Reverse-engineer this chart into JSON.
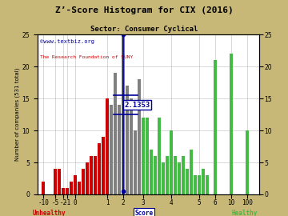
{
  "title": "Z’-Score Histogram for CIX (2016)",
  "subtitle": "Sector: Consumer Cyclical",
  "watermark1": "©www.textbiz.org",
  "watermark2": "The Research Foundation of SUNY",
  "cix_score": 2.1353,
  "cix_label": "2.1353",
  "background_color": "#c8b878",
  "plot_bg_color": "#ffffff",
  "bar_data": [
    {
      "x": 0,
      "height": 2,
      "color": "#cc0000"
    },
    {
      "x": 3,
      "height": 4,
      "color": "#cc0000"
    },
    {
      "x": 4,
      "height": 4,
      "color": "#cc0000"
    },
    {
      "x": 5,
      "height": 1,
      "color": "#cc0000"
    },
    {
      "x": 6,
      "height": 1,
      "color": "#cc0000"
    },
    {
      "x": 7,
      "height": 2,
      "color": "#cc0000"
    },
    {
      "x": 8,
      "height": 3,
      "color": "#cc0000"
    },
    {
      "x": 9,
      "height": 2,
      "color": "#cc0000"
    },
    {
      "x": 10,
      "height": 4,
      "color": "#cc0000"
    },
    {
      "x": 11,
      "height": 5,
      "color": "#cc0000"
    },
    {
      "x": 12,
      "height": 6,
      "color": "#cc0000"
    },
    {
      "x": 13,
      "height": 6,
      "color": "#cc0000"
    },
    {
      "x": 14,
      "height": 8,
      "color": "#cc0000"
    },
    {
      "x": 15,
      "height": 9,
      "color": "#cc0000"
    },
    {
      "x": 16,
      "height": 15,
      "color": "#cc0000"
    },
    {
      "x": 17,
      "height": 14,
      "color": "#808080"
    },
    {
      "x": 18,
      "height": 19,
      "color": "#808080"
    },
    {
      "x": 19,
      "height": 14,
      "color": "#808080"
    },
    {
      "x": 20,
      "height": 25,
      "color": "#808080"
    },
    {
      "x": 21,
      "height": 17,
      "color": "#808080"
    },
    {
      "x": 22,
      "height": 15,
      "color": "#808080"
    },
    {
      "x": 23,
      "height": 10,
      "color": "#808080"
    },
    {
      "x": 24,
      "height": 18,
      "color": "#808080"
    },
    {
      "x": 25,
      "height": 12,
      "color": "#44bb44"
    },
    {
      "x": 26,
      "height": 12,
      "color": "#44bb44"
    },
    {
      "x": 27,
      "height": 7,
      "color": "#44bb44"
    },
    {
      "x": 28,
      "height": 6,
      "color": "#44bb44"
    },
    {
      "x": 29,
      "height": 12,
      "color": "#44bb44"
    },
    {
      "x": 30,
      "height": 5,
      "color": "#44bb44"
    },
    {
      "x": 31,
      "height": 6,
      "color": "#44bb44"
    },
    {
      "x": 32,
      "height": 10,
      "color": "#44bb44"
    },
    {
      "x": 33,
      "height": 6,
      "color": "#44bb44"
    },
    {
      "x": 34,
      "height": 5,
      "color": "#44bb44"
    },
    {
      "x": 35,
      "height": 6,
      "color": "#44bb44"
    },
    {
      "x": 36,
      "height": 4,
      "color": "#44bb44"
    },
    {
      "x": 37,
      "height": 7,
      "color": "#44bb44"
    },
    {
      "x": 38,
      "height": 3,
      "color": "#44bb44"
    },
    {
      "x": 39,
      "height": 3,
      "color": "#44bb44"
    },
    {
      "x": 40,
      "height": 4,
      "color": "#44bb44"
    },
    {
      "x": 41,
      "height": 3,
      "color": "#44bb44"
    },
    {
      "x": 43,
      "height": 21,
      "color": "#44bb44"
    },
    {
      "x": 47,
      "height": 22,
      "color": "#44bb44"
    },
    {
      "x": 51,
      "height": 10,
      "color": "#44bb44"
    }
  ],
  "xtick_labels": [
    "-10",
    "-5",
    "-2",
    "-1",
    "0",
    "1",
    "2",
    "3",
    "4",
    "5",
    "6",
    "10",
    "100"
  ],
  "xtick_display": [
    0,
    3,
    5,
    6,
    8,
    16,
    20,
    25,
    32,
    39,
    43,
    47,
    51
  ],
  "ylim": [
    0,
    25
  ],
  "yticks_left": [
    0,
    5,
    10,
    15,
    20,
    25
  ],
  "yticks_right": [
    0,
    5,
    10,
    15,
    20,
    25
  ],
  "grid_color": "#aaaaaa",
  "score_line_color": "#000099",
  "score_label_bg": "#ffffff",
  "watermark_color1": "#000099",
  "watermark_color2": "#cc0000",
  "unhealthy_color": "#cc0000",
  "healthy_color": "#44bb44",
  "cix_display_x": 20
}
